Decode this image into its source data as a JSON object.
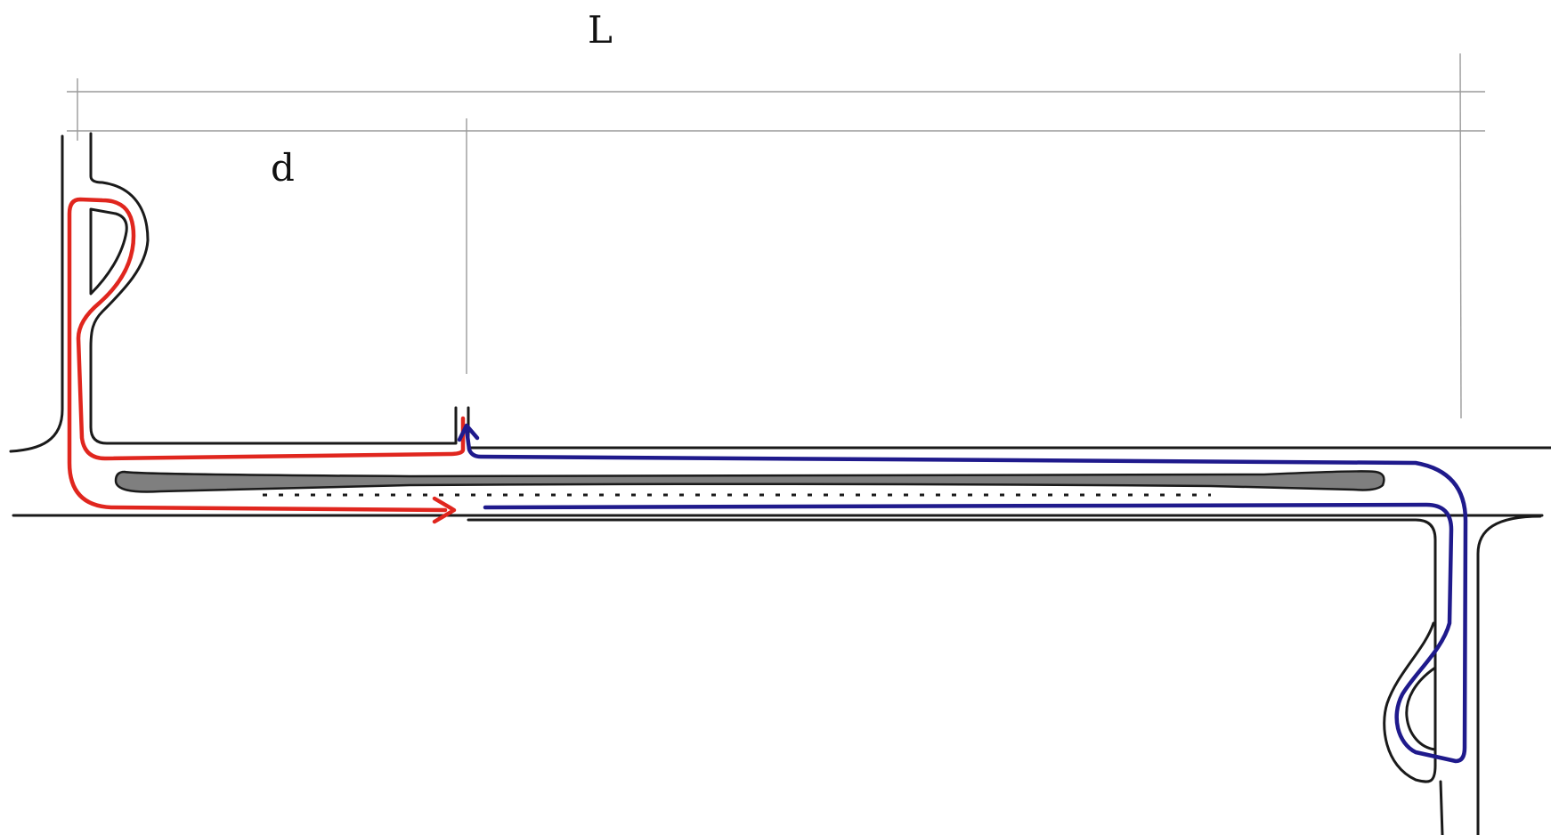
{
  "labels": {
    "length": "L",
    "distance": "d"
  },
  "colors": {
    "road": "#1a1a1a",
    "guide": "#9a9a9a",
    "median": "#7f7f7f",
    "path_red": "#e0261e",
    "path_blue": "#1f1a8c"
  }
}
